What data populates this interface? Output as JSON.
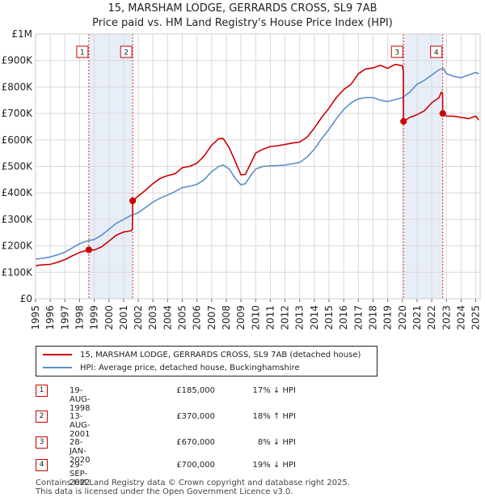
{
  "title_line1": "15, MARSHAM LODGE, GERRARDS CROSS, SL9 7AB",
  "title_line2": "Price paid vs. HM Land Registry's House Price Index (HPI)",
  "colors": {
    "property": "#cc0000",
    "hpi": "#5b8fc9",
    "band": "#e8eef8",
    "vline": "#cc0000"
  },
  "chart_data": {
    "type": "line",
    "title": "15, MARSHAM LODGE, GERRARDS CROSS, SL9 7AB — Price paid vs. HM Land Registry's House Price Index (HPI)",
    "xlabel": "",
    "ylabel": "",
    "xlim": [
      1995,
      2025.3
    ],
    "ylim": [
      0,
      1000000
    ],
    "grid": true,
    "y_ticks": [
      {
        "value": 0,
        "label": "£0"
      },
      {
        "value": 100000,
        "label": "£100K"
      },
      {
        "value": 200000,
        "label": "£200K"
      },
      {
        "value": 300000,
        "label": "£300K"
      },
      {
        "value": 400000,
        "label": "£400K"
      },
      {
        "value": 500000,
        "label": "£500K"
      },
      {
        "value": 600000,
        "label": "£600K"
      },
      {
        "value": 700000,
        "label": "£700K"
      },
      {
        "value": 800000,
        "label": "£800K"
      },
      {
        "value": 900000,
        "label": "£900K"
      },
      {
        "value": 1000000,
        "label": "£1M"
      }
    ],
    "x_ticks": [
      1995,
      1996,
      1997,
      1998,
      1999,
      2000,
      2001,
      2002,
      2003,
      2004,
      2005,
      2006,
      2007,
      2008,
      2009,
      2010,
      2011,
      2012,
      2013,
      2014,
      2015,
      2016,
      2017,
      2018,
      2019,
      2020,
      2021,
      2022,
      2023,
      2024,
      2025
    ],
    "bands": [
      [
        1998.63,
        2001.62
      ],
      [
        2020.08,
        2022.75
      ]
    ],
    "series": [
      {
        "name": "15, MARSHAM LODGE, GERRARDS CROSS, SL9 7AB (detached house)",
        "x": [
          1995.0,
          1995.5,
          1996.0,
          1996.5,
          1997.0,
          1997.5,
          1998.0,
          1998.5,
          1998.63,
          1999.0,
          1999.5,
          2000.0,
          2000.5,
          2001.0,
          2001.5,
          2001.6,
          2001.62,
          2002.0,
          2002.5,
          2003.0,
          2003.5,
          2004.0,
          2004.5,
          2005.0,
          2005.5,
          2006.0,
          2006.5,
          2007.0,
          2007.5,
          2007.8,
          2008.2,
          2008.6,
          2009.0,
          2009.3,
          2009.7,
          2010.0,
          2010.5,
          2011.0,
          2011.5,
          2012.0,
          2012.5,
          2013.0,
          2013.5,
          2014.0,
          2014.5,
          2015.0,
          2015.5,
          2016.0,
          2016.5,
          2017.0,
          2017.5,
          2018.0,
          2018.5,
          2019.0,
          2019.5,
          2020.0,
          2020.07,
          2020.08,
          2020.5,
          2021.0,
          2021.5,
          2022.0,
          2022.5,
          2022.65,
          2022.74,
          2022.75,
          2023.0,
          2023.5,
          2024.0,
          2024.5,
          2025.0,
          2025.2
        ],
        "values": [
          125000,
          128000,
          130000,
          138000,
          148000,
          162000,
          175000,
          183000,
          185000,
          184000,
          196000,
          218000,
          240000,
          252000,
          257000,
          262000,
          370000,
          388000,
          410000,
          435000,
          455000,
          465000,
          472000,
          495000,
          500000,
          512000,
          540000,
          580000,
          605000,
          605000,
          570000,
          520000,
          468000,
          470000,
          515000,
          550000,
          565000,
          575000,
          578000,
          583000,
          588000,
          592000,
          610000,
          645000,
          685000,
          720000,
          760000,
          790000,
          810000,
          850000,
          868000,
          872000,
          882000,
          870000,
          885000,
          880000,
          860000,
          670000,
          685000,
          695000,
          710000,
          740000,
          760000,
          780000,
          775000,
          700000,
          690000,
          690000,
          685000,
          680000,
          690000,
          675000
        ]
      },
      {
        "name": "HPI: Average price, detached house, Buckinghamshire",
        "x": [
          1995.0,
          1995.5,
          1996.0,
          1996.5,
          1997.0,
          1997.5,
          1998.0,
          1998.5,
          1999.0,
          1999.5,
          2000.0,
          2000.5,
          2001.0,
          2001.5,
          2002.0,
          2002.5,
          2003.0,
          2003.5,
          2004.0,
          2004.5,
          2005.0,
          2005.5,
          2006.0,
          2006.5,
          2007.0,
          2007.5,
          2007.8,
          2008.2,
          2008.6,
          2009.0,
          2009.3,
          2009.7,
          2010.0,
          2010.5,
          2011.0,
          2011.5,
          2012.0,
          2012.5,
          2013.0,
          2013.5,
          2014.0,
          2014.5,
          2015.0,
          2015.5,
          2016.0,
          2016.5,
          2017.0,
          2017.5,
          2018.0,
          2018.5,
          2019.0,
          2019.5,
          2020.0,
          2020.5,
          2021.0,
          2021.5,
          2022.0,
          2022.5,
          2022.8,
          2023.0,
          2023.5,
          2024.0,
          2024.5,
          2025.0,
          2025.2
        ],
        "values": [
          150000,
          153000,
          158000,
          166000,
          176000,
          192000,
          208000,
          218000,
          224000,
          240000,
          262000,
          285000,
          300000,
          315000,
          325000,
          345000,
          365000,
          380000,
          392000,
          405000,
          420000,
          425000,
          432000,
          450000,
          480000,
          500000,
          505000,
          490000,
          455000,
          430000,
          435000,
          468000,
          490000,
          500000,
          502000,
          503000,
          505000,
          510000,
          515000,
          535000,
          565000,
          605000,
          640000,
          680000,
          715000,
          740000,
          755000,
          760000,
          760000,
          750000,
          745000,
          752000,
          760000,
          780000,
          810000,
          825000,
          845000,
          865000,
          870000,
          850000,
          840000,
          835000,
          845000,
          855000,
          850000
        ]
      }
    ],
    "sales": [
      {
        "id": "1",
        "x": 1998.63,
        "value": 185000
      },
      {
        "id": "2",
        "x": 2001.62,
        "value": 370000
      },
      {
        "id": "3",
        "x": 2020.08,
        "value": 670000
      },
      {
        "id": "4",
        "x": 2022.75,
        "value": 700000
      }
    ]
  },
  "legend": {
    "property_label": "15, MARSHAM LODGE, GERRARDS CROSS, SL9 7AB (detached house)",
    "hpi_label": "HPI: Average price, detached house, Buckinghamshire"
  },
  "sales_table": [
    {
      "id": "1",
      "date": "19-AUG-1998",
      "price": "£185,000",
      "hpi": "17% ↓ HPI"
    },
    {
      "id": "2",
      "date": "13-AUG-2001",
      "price": "£370,000",
      "hpi": "18% ↑ HPI"
    },
    {
      "id": "3",
      "date": "28-JAN-2020",
      "price": "£670,000",
      "hpi": "8% ↓ HPI"
    },
    {
      "id": "4",
      "date": "29-SEP-2022",
      "price": "£700,000",
      "hpi": "19% ↓ HPI"
    }
  ],
  "footer_line1": "Contains HM Land Registry data © Crown copyright and database right 2025.",
  "footer_line2": "This data is licensed under the Open Government Licence v3.0."
}
